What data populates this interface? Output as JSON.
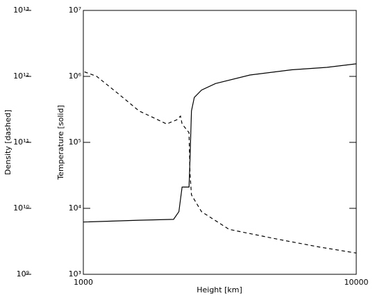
{
  "chart_data": {
    "type": "line",
    "xlabel": "Height [km]",
    "ylabel": "Density [dashed]",
    "y2label": "Temperature [solid]",
    "xscale": "log",
    "yscale": "log",
    "y2scale": "log",
    "xlim": [
      1000,
      10000
    ],
    "xticks": [
      1000,
      10000
    ],
    "ylim": [
      1000000000.0,
      10000000000000.0
    ],
    "yticks": [
      {
        "value": 1000000000.0,
        "label": "10⁹"
      },
      {
        "value": 10000000000.0,
        "label": "10¹⁰"
      },
      {
        "value": 100000000000.0,
        "label": "10¹¹"
      },
      {
        "value": 1000000000000.0,
        "label": "10¹²"
      },
      {
        "value": 10000000000000.0,
        "label": "10¹³"
      }
    ],
    "y2lim": [
      1000.0,
      10000000.0
    ],
    "y2ticks": [
      {
        "value": 1000.0,
        "label": "10³"
      },
      {
        "value": 10000.0,
        "label": "10⁴"
      },
      {
        "value": 100000.0,
        "label": "10⁵"
      },
      {
        "value": 1000000.0,
        "label": "10⁶"
      },
      {
        "value": 10000000.0,
        "label": "10⁷"
      }
    ],
    "series": [
      {
        "color": "#000000",
        "dash": false,
        "axis": "y2",
        "x": [
          1000,
          1600,
          2140,
          2240,
          2300,
          2440,
          2460,
          2490,
          2550,
          2710,
          3050,
          4080,
          5800,
          7800,
          10000
        ],
        "values": [
          6200,
          6600,
          6800,
          8900,
          21000,
          21000,
          55000,
          300000,
          480000,
          620000,
          780000,
          1050000,
          1260000,
          1370000,
          1550000
        ]
      },
      {
        "color": "#000000",
        "dash": true,
        "axis": "y",
        "x": [
          1010,
          1120,
          1340,
          1600,
          2020,
          2200,
          2270,
          2300,
          2440,
          2460,
          2490,
          2710,
          3420,
          5160,
          7300,
          10000
        ],
        "values": [
          1170000000000.0,
          1000000000000.0,
          550000000000.0,
          300000000000.0,
          190000000000.0,
          220000000000.0,
          250000000000.0,
          190000000000.0,
          140000000000.0,
          34000000000.0,
          16000000000.0,
          8900000000.0,
          4800000000.0,
          3400000000.0,
          2600000000.0,
          2100000000.0
        ]
      }
    ]
  }
}
